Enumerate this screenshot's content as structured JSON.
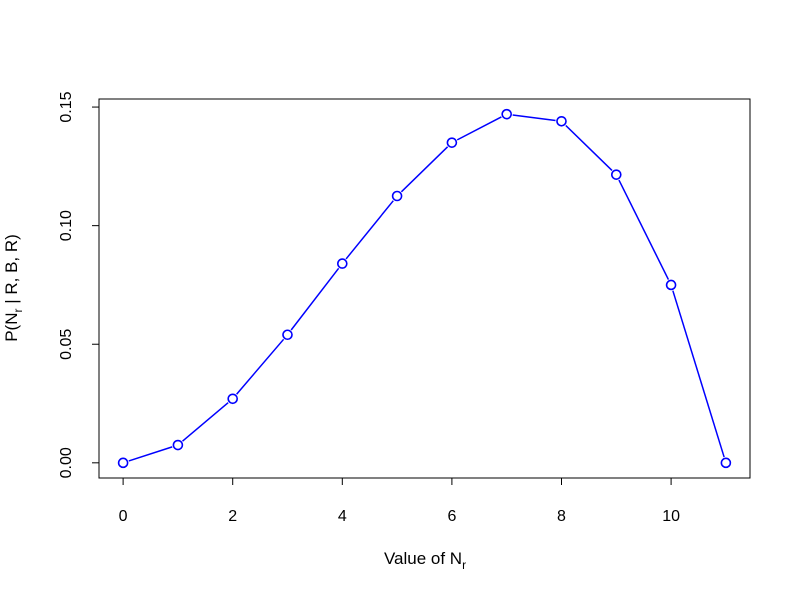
{
  "chart_data": {
    "type": "line",
    "title": "",
    "xlabel": {
      "main": "Value of N",
      "sub": "r"
    },
    "ylabel": {
      "prefix": "P(N",
      "sub": "r",
      "suffix": " | R, B, R)"
    },
    "x": [
      0,
      1,
      2,
      3,
      4,
      5,
      6,
      7,
      8,
      9,
      10,
      11
    ],
    "series": [
      {
        "values": [
          0.0,
          0.0075,
          0.027,
          0.054,
          0.084,
          0.1125,
          0.135,
          0.147,
          0.144,
          0.1215,
          0.075,
          0.0
        ]
      }
    ],
    "xlim": [
      -0.44,
      11.44
    ],
    "ylim": [
      -0.0064,
      0.1534
    ],
    "xticks": [
      0,
      2,
      4,
      6,
      8,
      10
    ],
    "xtick_labels": [
      "0",
      "2",
      "4",
      "6",
      "8",
      "10"
    ],
    "yticks": [
      0.0,
      0.05,
      0.1,
      0.15
    ],
    "ytick_labels": [
      "0.00",
      "0.05",
      "0.10",
      "0.15"
    ],
    "marker": "open-circle",
    "line_color": "#0000ff",
    "grid": false,
    "legend": "none"
  }
}
